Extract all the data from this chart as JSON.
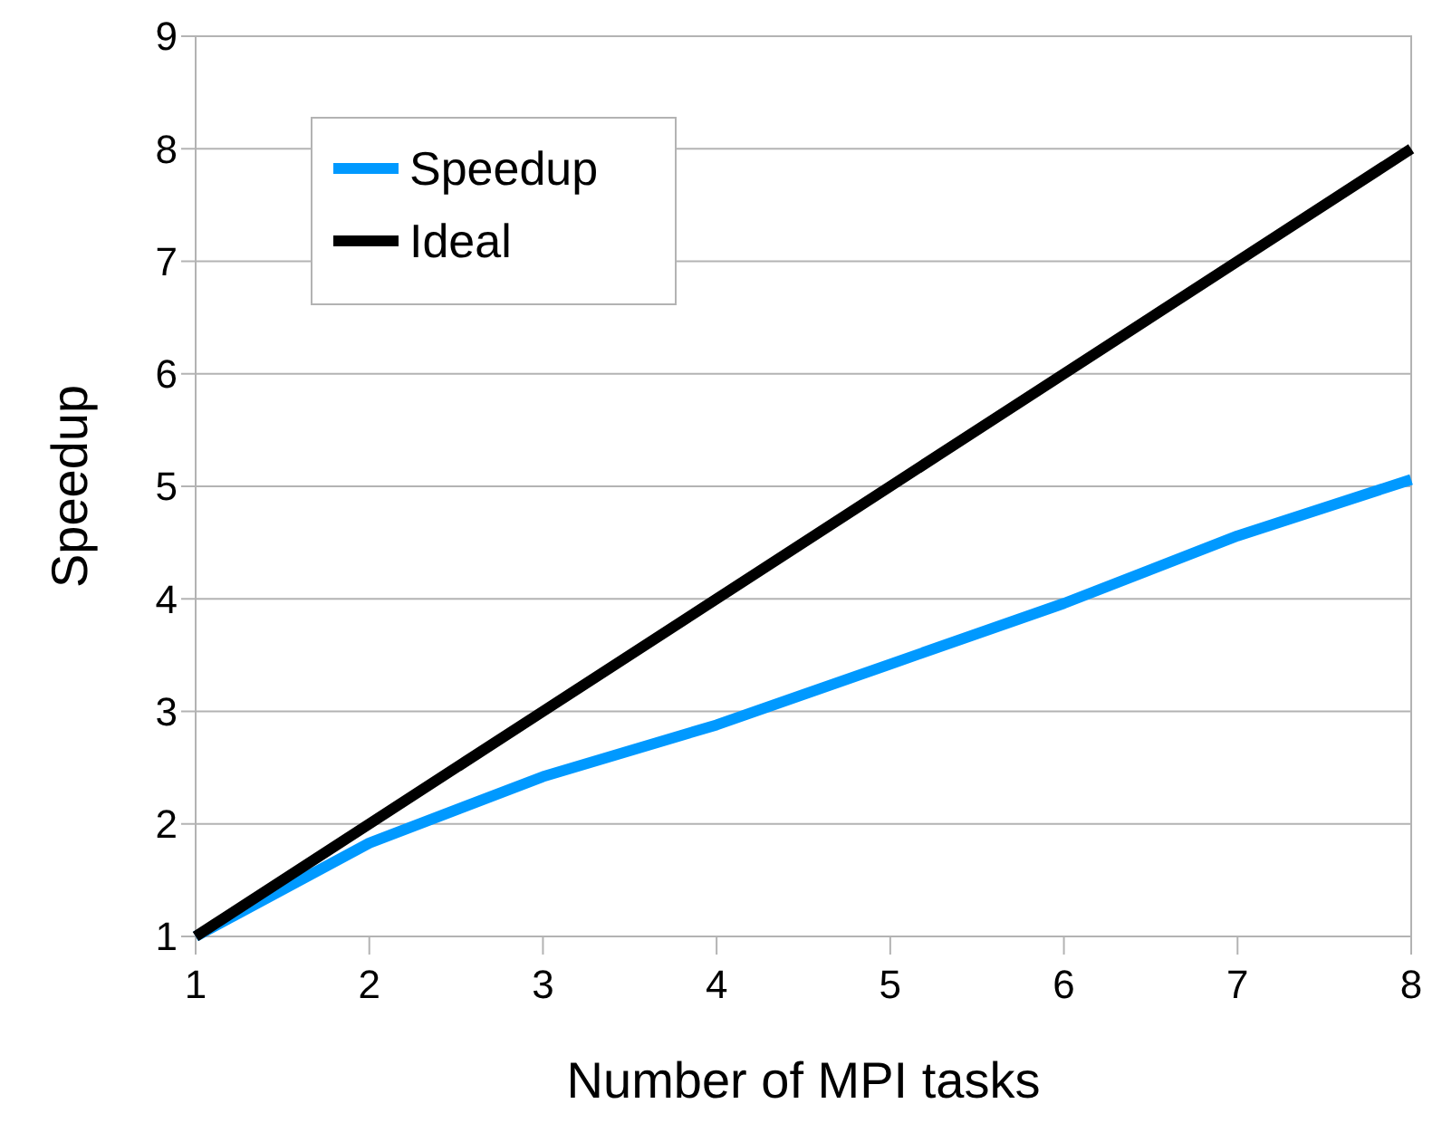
{
  "chart_data": {
    "type": "line",
    "xlabel": "Number of MPI tasks",
    "ylabel": "Speedup",
    "x": [
      1,
      2,
      3,
      4,
      5,
      6,
      7,
      8
    ],
    "series": [
      {
        "name": "Speedup",
        "color": "#0099ff",
        "values": [
          1,
          1.83,
          2.42,
          2.88,
          3.42,
          3.96,
          4.56,
          5.06
        ]
      },
      {
        "name": "Ideal",
        "color": "#000000",
        "values": [
          1,
          2,
          3,
          4,
          5,
          6,
          7,
          8
        ]
      }
    ],
    "xlim": [
      1,
      8
    ],
    "xticks": [
      1,
      2,
      3,
      4,
      5,
      6,
      7,
      8
    ],
    "ylim": [
      1,
      9
    ],
    "yticks": [
      1,
      2,
      3,
      4,
      5,
      6,
      7,
      8,
      9
    ],
    "grid": "y",
    "legend": "top left",
    "marker": "none",
    "line_style": "solid"
  }
}
